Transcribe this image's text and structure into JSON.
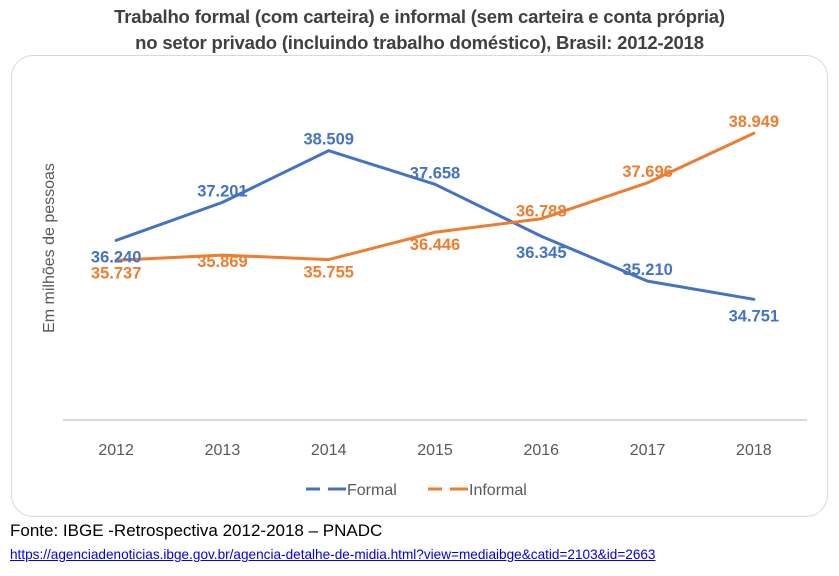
{
  "chart_data": {
    "type": "line",
    "title": "Trabalho formal (com carteira) e informal (sem carteira e conta própria) no setor privado (incluindo trabalho doméstico), Brasil: 2012-2018",
    "title_lines": [
      "Trabalho formal (com carteira) e informal (sem carteira e conta própria)",
      "no setor privado (incluindo trabalho doméstico), Brasil: 2012-2018"
    ],
    "xlabel": "",
    "ylabel": "Em milhões de pessoas",
    "categories": [
      "2012",
      "2013",
      "2014",
      "2015",
      "2016",
      "2017",
      "2018"
    ],
    "series": [
      {
        "name": "Formal",
        "color": "#4472c4",
        "values": [
          36.24,
          37.201,
          38.509,
          37.658,
          36.345,
          35.21,
          34.751
        ],
        "labels": [
          "36.240",
          "37.201",
          "38.509",
          "37.658",
          "36.345",
          "35.210",
          "34.751"
        ]
      },
      {
        "name": "Informal",
        "color": "#ed7d31",
        "values": [
          35.737,
          35.869,
          35.755,
          36.446,
          36.788,
          37.696,
          38.949
        ],
        "labels": [
          "35.737",
          "35.869",
          "35.755",
          "36.446",
          "36.788",
          "37.696",
          "38.949"
        ]
      }
    ],
    "ylim": [
      31.7,
      40.8
    ],
    "y_axis_visible": false,
    "grid": false,
    "legend": {
      "position": "bottom",
      "entries": [
        "Formal",
        "Informal"
      ]
    }
  },
  "footer": {
    "source": "Fonte: IBGE -Retrospectiva 2012-2018 – PNADC",
    "link": "https://agenciadenoticias.ibge.gov.br/agencia-detalhe-de-midia.html?view=mediaibge&catid=2103&id=2663"
  },
  "colors": {
    "axis_line": "#d9d9d9",
    "tick_text": "#595959",
    "title_text": "#404040"
  }
}
